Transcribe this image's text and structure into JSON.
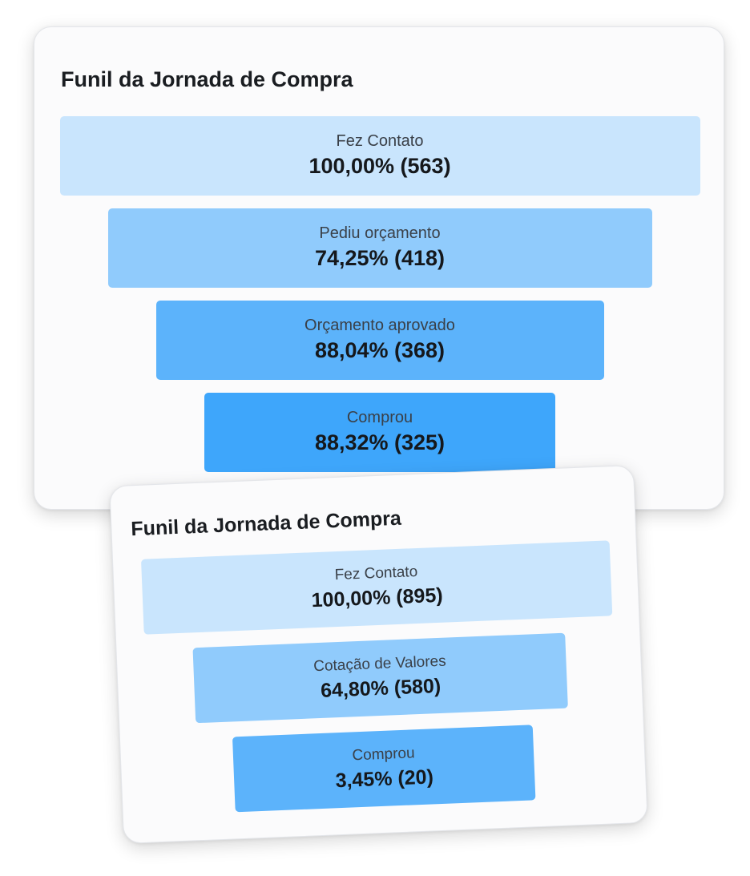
{
  "funnels": [
    {
      "title": "Funil da Jornada de Compra",
      "chart_data": {
        "type": "funnel",
        "stages": [
          {
            "label": "Fez Contato",
            "percent": 100.0,
            "percent_text": "100,00%",
            "count": 563,
            "value_text": "100,00% (563)",
            "color": "#c9e5fd"
          },
          {
            "label": "Pediu orçamento",
            "percent": 74.25,
            "percent_text": "74,25%",
            "count": 418,
            "value_text": "74,25% (418)",
            "color": "#90cbfc"
          },
          {
            "label": "Orçamento aprovado",
            "percent": 88.04,
            "percent_text": "88,04%",
            "count": 368,
            "value_text": "88,04% (368)",
            "color": "#5cb3fb"
          },
          {
            "label": "Comprou",
            "percent": 88.32,
            "percent_text": "88,32%",
            "count": 325,
            "value_text": "88,32% (325)",
            "color": "#3ea6fb"
          }
        ]
      }
    },
    {
      "title": "Funil da Jornada de Compra",
      "chart_data": {
        "type": "funnel",
        "stages": [
          {
            "label": "Fez Contato",
            "percent": 100.0,
            "percent_text": "100,00%",
            "count": 895,
            "value_text": "100,00% (895)",
            "color": "#c9e5fd"
          },
          {
            "label": "Cotação de Valores",
            "percent": 64.8,
            "percent_text": "64,80%",
            "count": 580,
            "value_text": "64,80% (580)",
            "color": "#90cbfc"
          },
          {
            "label": "Comprou",
            "percent": 3.45,
            "percent_text": "3,45%",
            "count": 20,
            "value_text": "3,45% (20)",
            "color": "#5cb3fb"
          }
        ]
      }
    }
  ]
}
